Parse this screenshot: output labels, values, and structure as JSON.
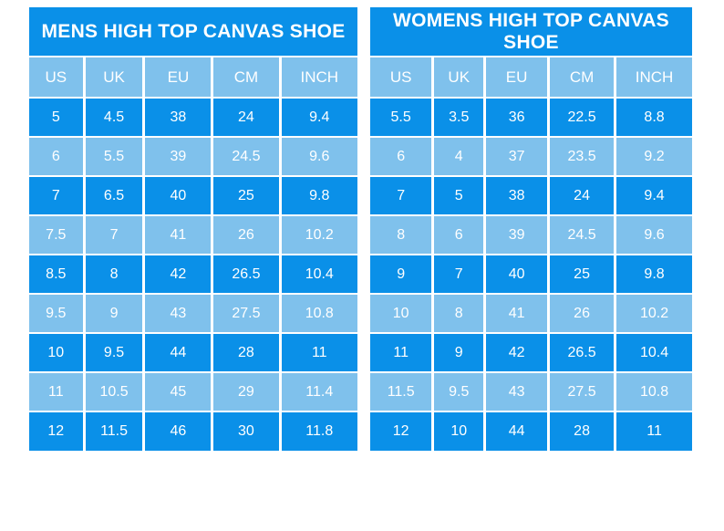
{
  "colors": {
    "dark_blue": "#0a90e8",
    "light_blue": "#7fc1ec",
    "text": "#ffffff",
    "background": "#ffffff"
  },
  "chart_data": [
    {
      "type": "table",
      "title": "MENS HIGH TOP CANVAS SHOE",
      "columns": [
        "US",
        "UK",
        "EU",
        "CM",
        "INCH"
      ],
      "rows": [
        [
          "5",
          "4.5",
          "38",
          "24",
          "9.4"
        ],
        [
          "6",
          "5.5",
          "39",
          "24.5",
          "9.6"
        ],
        [
          "7",
          "6.5",
          "40",
          "25",
          "9.8"
        ],
        [
          "7.5",
          "7",
          "41",
          "26",
          "10.2"
        ],
        [
          "8.5",
          "8",
          "42",
          "26.5",
          "10.4"
        ],
        [
          "9.5",
          "9",
          "43",
          "27.5",
          "10.8"
        ],
        [
          "10",
          "9.5",
          "44",
          "28",
          "11"
        ],
        [
          "11",
          "10.5",
          "45",
          "29",
          "11.4"
        ],
        [
          "12",
          "11.5",
          "46",
          "30",
          "11.8"
        ]
      ]
    },
    {
      "type": "table",
      "title": "WOMENS HIGH TOP CANVAS SHOE",
      "columns": [
        "US",
        "UK",
        "EU",
        "CM",
        "INCH"
      ],
      "rows": [
        [
          "5.5",
          "3.5",
          "36",
          "22.5",
          "8.8"
        ],
        [
          "6",
          "4",
          "37",
          "23.5",
          "9.2"
        ],
        [
          "7",
          "5",
          "38",
          "24",
          "9.4"
        ],
        [
          "8",
          "6",
          "39",
          "24.5",
          "9.6"
        ],
        [
          "9",
          "7",
          "40",
          "25",
          "9.8"
        ],
        [
          "10",
          "8",
          "41",
          "26",
          "10.2"
        ],
        [
          "11",
          "9",
          "42",
          "26.5",
          "10.4"
        ],
        [
          "11.5",
          "9.5",
          "43",
          "27.5",
          "10.8"
        ],
        [
          "12",
          "10",
          "44",
          "28",
          "11"
        ]
      ]
    }
  ]
}
